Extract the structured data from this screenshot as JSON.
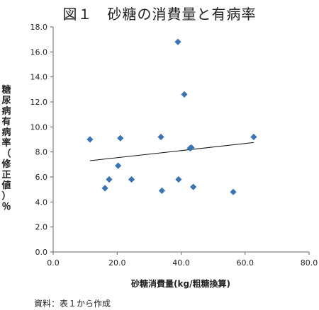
{
  "title": "図１　砂糖の消費量と有病率",
  "source_note": "資料：表１から作成",
  "chart_data": {
    "type": "scatter",
    "title": "図１　砂糖の消費量と有病率",
    "xlabel": "砂糖消費量(kg/粗糖換算)",
    "ylabel": "糖尿病有病率（修正値）％",
    "xlim": [
      0,
      80
    ],
    "ylim": [
      0,
      18
    ],
    "xticks": [
      "0.0",
      "20.0",
      "40.0",
      "60.0",
      "80.0"
    ],
    "yticks": [
      "0.0",
      "2.0",
      "4.0",
      "6.0",
      "8.0",
      "10.0",
      "12.0",
      "14.0",
      "16.0",
      "18.0"
    ],
    "grid": false,
    "marker_color": "#3a74b4",
    "points": [
      {
        "x": 11.5,
        "y": 9.0
      },
      {
        "x": 16.2,
        "y": 5.1
      },
      {
        "x": 17.5,
        "y": 5.8
      },
      {
        "x": 20.3,
        "y": 6.9
      },
      {
        "x": 21.0,
        "y": 9.1
      },
      {
        "x": 24.5,
        "y": 5.8
      },
      {
        "x": 33.7,
        "y": 9.2
      },
      {
        "x": 34.0,
        "y": 4.9
      },
      {
        "x": 39.0,
        "y": 16.8
      },
      {
        "x": 39.2,
        "y": 5.8
      },
      {
        "x": 41.0,
        "y": 12.6
      },
      {
        "x": 42.8,
        "y": 8.3
      },
      {
        "x": 43.2,
        "y": 8.35
      },
      {
        "x": 43.8,
        "y": 5.2
      },
      {
        "x": 56.3,
        "y": 4.8
      },
      {
        "x": 62.7,
        "y": 9.2
      }
    ],
    "trendline": {
      "x": [
        11.5,
        62.7
      ],
      "y": [
        7.3,
        8.75
      ]
    }
  }
}
